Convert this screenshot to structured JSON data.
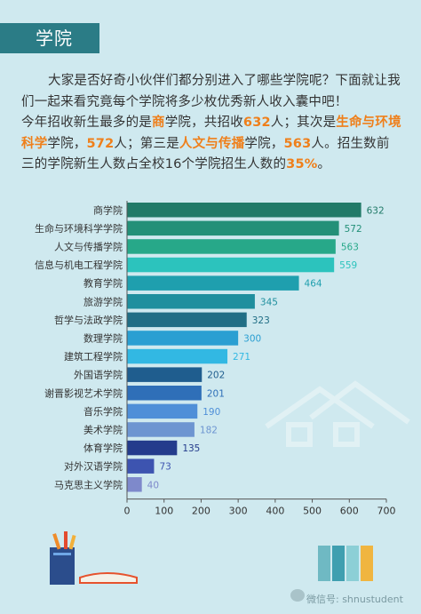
{
  "header": {
    "title": "学院"
  },
  "intro": {
    "p1": "大家是否好奇小伙伴们都分别进入了哪些学院呢？下面就让我们一起来看究竟每个学院将多少枚优秀新人收入囊中吧！",
    "s1": "今年招收新生最多的是",
    "h1": "商",
    "s2": "学院，共招收",
    "h2": "632",
    "s3": "人；其次是",
    "h3": "生命与环境科学",
    "s4": "学院，",
    "h4": "572",
    "s5": "人；第三是",
    "h5": "人文与传播",
    "s6": "学院，",
    "h6": "563",
    "s7": "人。招生数前三的学院新生人数占全校16个学院招生人数的",
    "h7": "35%",
    "s8": "。"
  },
  "watermark": "微信号: shnustudent",
  "chart_data": {
    "type": "bar",
    "orientation": "horizontal",
    "categories": [
      "商学院",
      "生命与环境科学学院",
      "人文与传播学院",
      "信息与机电工程学院",
      "教育学院",
      "旅游学院",
      "哲学与法政学院",
      "数理学院",
      "建筑工程学院",
      "外国语学院",
      "谢晋影视艺术学院",
      "音乐学院",
      "美术学院",
      "体育学院",
      "对外汉语学院",
      "马克思主义学院"
    ],
    "values": [
      632,
      572,
      563,
      559,
      464,
      345,
      323,
      300,
      271,
      202,
      201,
      190,
      182,
      135,
      73,
      40
    ],
    "colors": [
      "#217a68",
      "#239078",
      "#27a889",
      "#2cc3bd",
      "#1f9fae",
      "#1f8f9e",
      "#216e85",
      "#2a9fd2",
      "#32b8e3",
      "#1f5d8e",
      "#2f6fb8",
      "#4f8fd8",
      "#6d95d1",
      "#243c8c",
      "#3d54b0",
      "#7e89cb"
    ],
    "xlim": [
      0,
      700
    ],
    "xticks": [
      0,
      100,
      200,
      300,
      400,
      500,
      600,
      700
    ],
    "grid": false,
    "data_labels": true
  }
}
